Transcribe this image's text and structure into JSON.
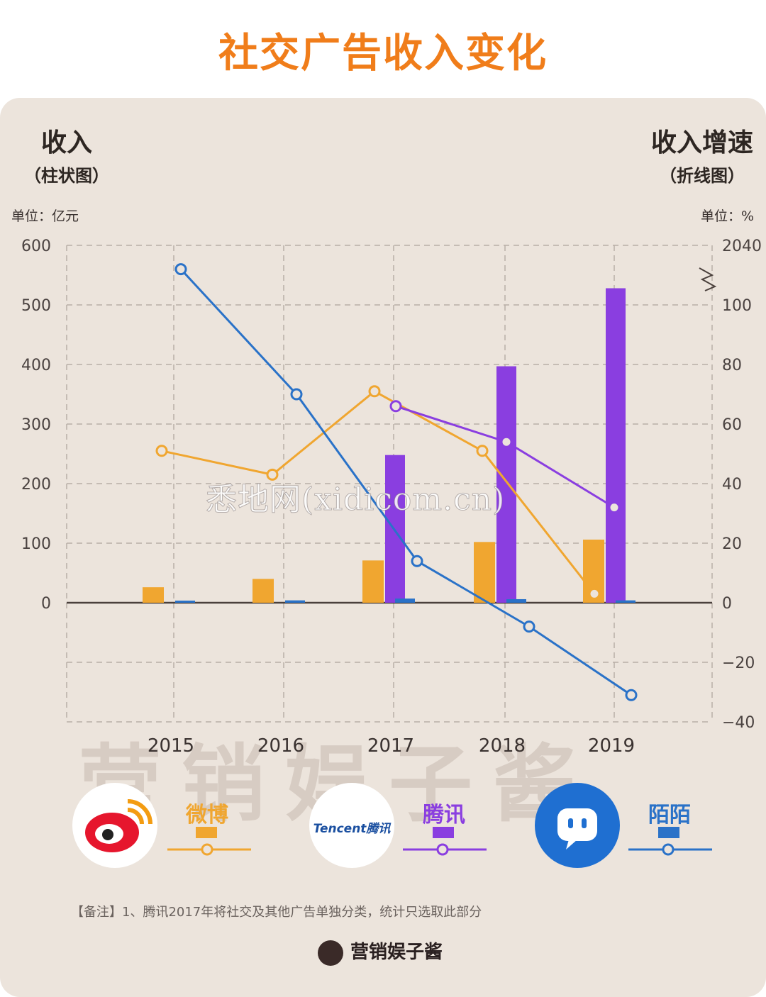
{
  "title": "社交广告收入变化",
  "left_axis": {
    "head": "收入",
    "sub": "（柱状图）",
    "unit": "单位：亿元"
  },
  "right_axis": {
    "head": "收入增速",
    "sub": "（折线图）",
    "unit": "单位：%"
  },
  "watermark": "悉地网(xidicom.cn)",
  "brand_mark": "营销娱子酱",
  "legend": {
    "weibo": {
      "label": "微博",
      "color": "#f0a630"
    },
    "tencent": {
      "label": "腾讯",
      "logo_text": "Tencent腾讯",
      "color": "#8a3ee0"
    },
    "momo": {
      "label": "陌陌",
      "color": "#2a72c8"
    }
  },
  "note": "【备注】1、腾讯2017年将社交及其他广告单独分类，统计只选取此部分",
  "footer": "营销娱子酱",
  "chart_data": {
    "type": "bar",
    "categories": [
      "2015",
      "2016",
      "2017",
      "2018",
      "2019"
    ],
    "left_ylim": [
      -200,
      600
    ],
    "left_ticks": [
      600,
      500,
      400,
      300,
      200,
      100,
      0
    ],
    "right_ylim": [
      -40,
      120
    ],
    "right_ticks": [
      "2040",
      "100",
      "80",
      "60",
      "40",
      "20",
      "0",
      "−20",
      "−40"
    ],
    "bars": [
      {
        "name": "微博",
        "color": "#f0a630",
        "values": [
          26,
          40,
          71,
          102,
          106
        ]
      },
      {
        "name": "腾讯",
        "color": "#8a3ee0",
        "values": [
          null,
          null,
          248,
          397,
          528
        ]
      },
      {
        "name": "陌陌",
        "color": "#2a72c8",
        "values": [
          2,
          4,
          7,
          6,
          4
        ]
      }
    ],
    "lines": [
      {
        "name": "微博",
        "color": "#f0a630",
        "values": [
          51,
          43,
          71,
          51,
          3
        ]
      },
      {
        "name": "腾讯",
        "color": "#8a3ee0",
        "values": [
          null,
          null,
          66,
          54,
          32
        ]
      },
      {
        "name": "陌陌",
        "color": "#2a72c8",
        "values": [
          112,
          70,
          14,
          -8,
          -31
        ]
      }
    ],
    "grid": true,
    "axis_break": "right-top"
  }
}
